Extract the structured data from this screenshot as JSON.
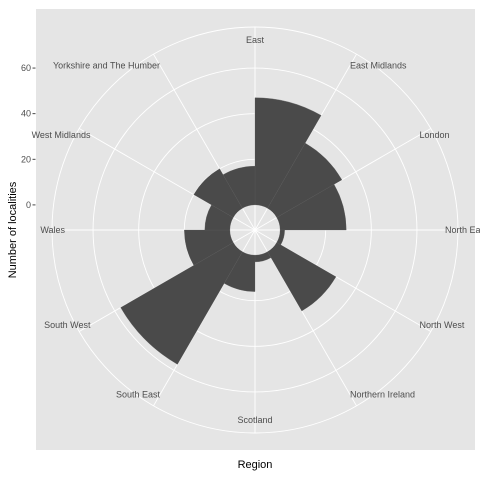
{
  "chart_data": {
    "type": "bar",
    "coord": "polar",
    "title": "",
    "xlabel": "Region",
    "ylabel": "Number of localities",
    "categories": [
      "East",
      "East Midlands",
      "London",
      "North East",
      "North West",
      "Northern Ireland",
      "Scotland",
      "South East",
      "South West",
      "Wales",
      "West Midlands",
      "Yorkshire and The Humber"
    ],
    "values": [
      47,
      33,
      29,
      2,
      30,
      3,
      16,
      57,
      20,
      11,
      20,
      17
    ],
    "yticks": [
      0,
      20,
      40,
      60
    ],
    "ylim": [
      -11,
      78
    ],
    "grid": true,
    "background": "#e5e5e5",
    "grid_color": "#ffffff",
    "bar_color": "#4a4a4a"
  }
}
